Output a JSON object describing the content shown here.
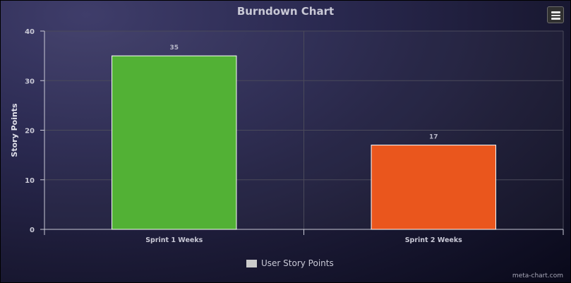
{
  "chart_data": {
    "type": "bar",
    "title": "Burndown Chart",
    "categories": [
      "Sprint 1 Weeks",
      "Sprint 2 Weeks"
    ],
    "values": [
      35,
      17
    ],
    "data_labels": [
      "35",
      "17"
    ],
    "bar_colors": [
      "#52b135",
      "#ea561d"
    ],
    "ylabel": "Story Points",
    "ylim": [
      0,
      40
    ],
    "yticks": [
      0,
      10,
      20,
      30,
      40
    ],
    "ytick_labels": [
      "0",
      "10",
      "20",
      "30",
      "40"
    ],
    "grid": true,
    "legend": {
      "placement": "bottom",
      "entries": [
        "User Story Points"
      ],
      "swatch_color": "#cccccc"
    }
  },
  "menu": {
    "icon": "hamburger-menu-icon"
  },
  "credit": "meta-chart.com",
  "colors": {
    "background_top": "#3f3d6a",
    "background_bottom": "#09091a",
    "text": "#c9c9d6",
    "grid": "#555555"
  }
}
